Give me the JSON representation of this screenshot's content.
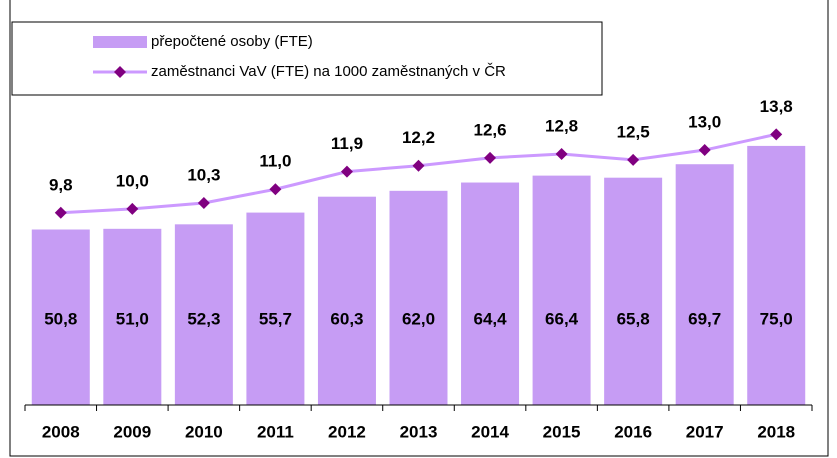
{
  "chart_data": {
    "type": "bar_line",
    "categories": [
      "2008",
      "2009",
      "2010",
      "2011",
      "2012",
      "2013",
      "2014",
      "2015",
      "2016",
      "2017",
      "2018"
    ],
    "series": [
      {
        "name": "přepočtené osoby (FTE)",
        "type": "bar",
        "color": "#c69cf4",
        "values": [
          50.8,
          51.0,
          52.3,
          55.7,
          60.3,
          62.0,
          64.4,
          66.4,
          65.8,
          69.7,
          75.0
        ],
        "value_labels": [
          "50,8",
          "51,0",
          "52,3",
          "55,7",
          "60,3",
          "62,0",
          "64,4",
          "66,4",
          "65,8",
          "69,7",
          "75,0"
        ]
      },
      {
        "name": "zaměstnanci VaV (FTE) na 1000 zaměstnaných v ČR",
        "type": "line",
        "axis": "y2",
        "color": "#cc99ff",
        "marker_color": "#800080",
        "values": [
          9.8,
          10.0,
          10.3,
          11.0,
          11.9,
          12.2,
          12.6,
          12.8,
          12.5,
          13.0,
          13.8
        ],
        "value_labels": [
          "9,8",
          "10,0",
          "10,3",
          "11,0",
          "11,9",
          "12,2",
          "12,6",
          "12,8",
          "12,5",
          "13,0",
          "13,8"
        ]
      }
    ],
    "ylim": [
      0,
      88
    ],
    "y2lim": [
      0,
      15.5
    ]
  }
}
